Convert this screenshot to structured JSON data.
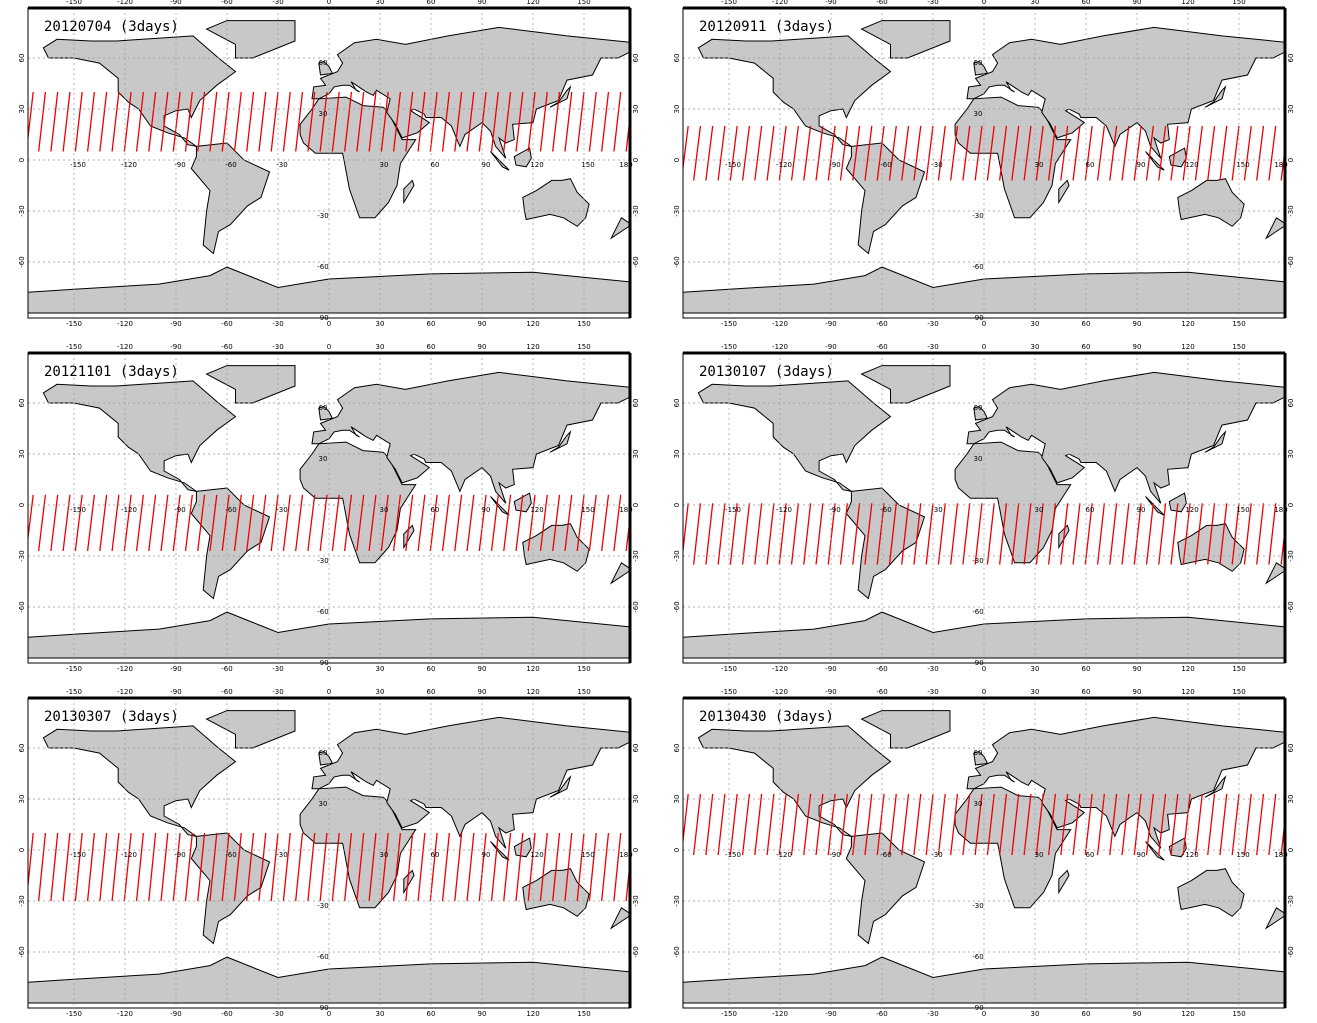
{
  "panels": [
    {
      "title": "20120704 (3days)"
    },
    {
      "title": "20120911 (3days)"
    },
    {
      "title": "20121101 (3days)"
    },
    {
      "title": "20130107 (3days)"
    },
    {
      "title": "20130307 (3days)"
    },
    {
      "title": "20130430 (3days)"
    }
  ],
  "axes": {
    "lon_ticks": [
      -150,
      -120,
      -90,
      -60,
      -30,
      0,
      30,
      60,
      90,
      120,
      150
    ],
    "lat_ticks": [
      60,
      30,
      0,
      -30,
      -60
    ],
    "meridian_labels": [
      60,
      30,
      -30,
      -60,
      -90
    ],
    "equator_labels": [
      -150,
      -120,
      -90,
      -60,
      -30,
      30,
      60,
      90,
      120,
      150,
      180
    ]
  }
}
